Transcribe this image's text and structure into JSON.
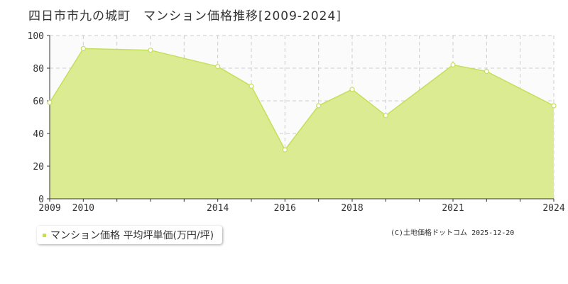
{
  "title": "四日市市九の城町　マンション価格推移[2009-2024]",
  "legend_label": "マンション価格 平均坪単価(万円/坪)",
  "copyright": "(C)土地価格ドットコム 2025-12-20",
  "colors": {
    "fill": "#dbeb91",
    "line": "#c4e05a",
    "marker_fill": "#ffffff",
    "plot_bg": "#fbfbfb",
    "grid": "#cccccc",
    "axis": "#333333"
  },
  "chart_data": {
    "type": "area",
    "x": [
      2009,
      2010,
      2012,
      2014,
      2015,
      2016,
      2017,
      2018,
      2019,
      2021,
      2022,
      2024
    ],
    "series": [
      {
        "name": "マンション価格 平均坪単価(万円/坪)",
        "values": [
          59,
          92,
          91,
          81,
          69,
          30,
          57,
          67,
          51,
          82,
          78,
          57
        ]
      }
    ],
    "xticks": [
      2009,
      2010,
      2014,
      2016,
      2018,
      2021,
      2024
    ],
    "yticks": [
      0,
      20,
      40,
      60,
      80,
      100
    ],
    "ylim": [
      0,
      100
    ],
    "grid": true,
    "legend_position": "bottom-left"
  }
}
